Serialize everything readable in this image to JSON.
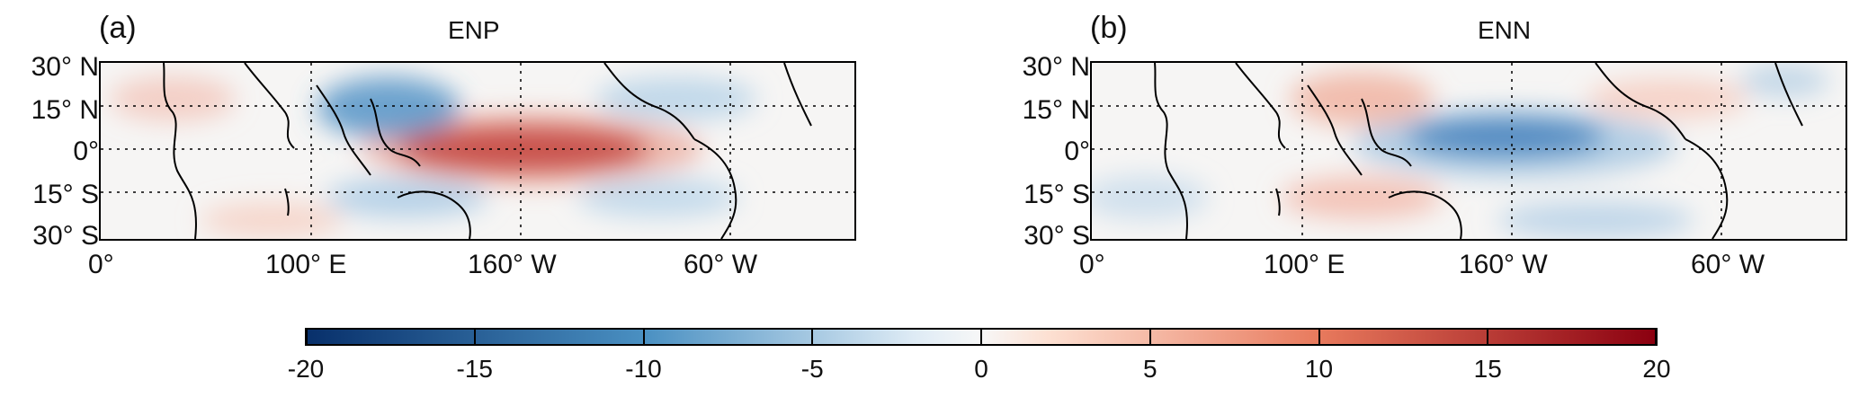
{
  "panels": [
    {
      "label": "(a)",
      "title": "ENP"
    },
    {
      "label": "(b)",
      "title": "ENN"
    }
  ],
  "lat_labels": [
    "30° N",
    "15° N",
    "0°",
    "15° S",
    "30° S"
  ],
  "lon_labels": [
    "0°",
    "100° E",
    "160° W",
    "60° W"
  ],
  "colorbar": {
    "ticks": [
      "-20",
      "-15",
      "-10",
      "-5",
      "0",
      "5",
      "10",
      "15",
      "20"
    ],
    "min": -20,
    "max": 20,
    "colors": {
      "neg_max": "#08306b",
      "neg_mid": "#4a90c2",
      "neutral": "#f7f7f7",
      "pos_mid": "#f4a582",
      "pos_max": "#8b0010"
    }
  }
}
